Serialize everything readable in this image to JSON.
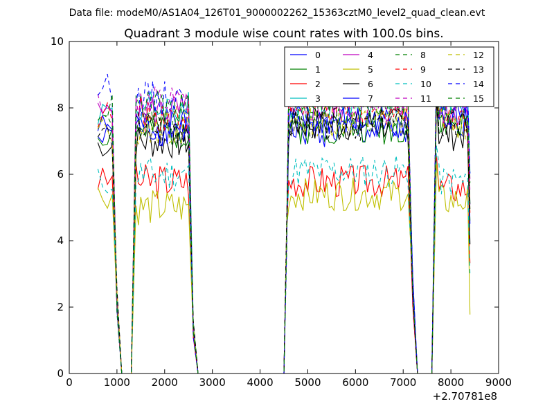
{
  "suptitle": "Data file: modeM0/AS1A04_126T01_9000002262_15363cztM0_level2_quad_clean.evt",
  "chart_data": {
    "type": "line",
    "title": "Quadrant 3 module wise count rates with 100.0s bins.",
    "xlabel": "",
    "ylabel": "",
    "xlim": [
      0,
      9000
    ],
    "ylim": [
      0,
      10
    ],
    "x_offset_label": "+2.70781e8",
    "x_ticks": [
      "0",
      "1000",
      "2000",
      "3000",
      "4000",
      "5000",
      "6000",
      "7000",
      "8000",
      "9000"
    ],
    "y_ticks": [
      "0",
      "2",
      "4",
      "6",
      "8",
      "10"
    ],
    "legend_position": "upper right",
    "grid": false,
    "series": [
      {
        "name": "0",
        "color": "#0000ff",
        "dash": "solid",
        "seed": 1,
        "levels": [
          7.1,
          7.4,
          7.3,
          7.6
        ]
      },
      {
        "name": "1",
        "color": "#008000",
        "dash": "solid",
        "seed": 2,
        "levels": [
          7.2,
          7.3,
          7.4,
          7.5
        ]
      },
      {
        "name": "2",
        "color": "#ff0000",
        "dash": "solid",
        "seed": 3,
        "levels": [
          5.8,
          5.8,
          5.8,
          5.6
        ]
      },
      {
        "name": "3",
        "color": "#00bfbf",
        "dash": "solid",
        "seed": 4,
        "levels": [
          7.9,
          8.0,
          8.2,
          8.2
        ]
      },
      {
        "name": "4",
        "color": "#bf00bf",
        "dash": "solid",
        "seed": 5,
        "levels": [
          7.8,
          7.9,
          8.0,
          7.9
        ]
      },
      {
        "name": "5",
        "color": "#bfbf00",
        "dash": "solid",
        "seed": 6,
        "levels": [
          5.4,
          5.0,
          5.4,
          5.2
        ]
      },
      {
        "name": "6",
        "color": "#000000",
        "dash": "solid",
        "seed": 7,
        "levels": [
          6.9,
          7.0,
          7.5,
          7.2
        ]
      },
      {
        "name": "7",
        "color": "#0000ff",
        "dash": "solid",
        "seed": 8,
        "levels": [
          7.4,
          7.4,
          7.6,
          7.7
        ]
      },
      {
        "name": "8",
        "color": "#008000",
        "dash": "dashed",
        "seed": 9,
        "levels": [
          7.6,
          7.5,
          7.8,
          7.6
        ]
      },
      {
        "name": "9",
        "color": "#ff0000",
        "dash": "dashed",
        "seed": 10,
        "levels": [
          7.8,
          7.8,
          8.0,
          7.8
        ]
      },
      {
        "name": "10",
        "color": "#00bfbf",
        "dash": "dashed",
        "seed": 11,
        "levels": [
          5.8,
          6.0,
          6.1,
          5.8
        ]
      },
      {
        "name": "11",
        "color": "#bf00bf",
        "dash": "dashed",
        "seed": 12,
        "levels": [
          8.2,
          8.1,
          8.3,
          8.2
        ]
      },
      {
        "name": "12",
        "color": "#bfbf00",
        "dash": "dashed",
        "seed": 13,
        "levels": [
          7.3,
          7.4,
          7.6,
          7.5
        ]
      },
      {
        "name": "13",
        "color": "#000000",
        "dash": "dashed",
        "seed": 14,
        "levels": [
          7.2,
          7.4,
          7.5,
          7.4
        ]
      },
      {
        "name": "14",
        "color": "#0000ff",
        "dash": "dashed",
        "seed": 15,
        "levels": [
          8.6,
          8.3,
          8.6,
          8.4
        ]
      },
      {
        "name": "15",
        "color": "#008000",
        "dash": "dashed",
        "seed": 16,
        "levels": [
          8.0,
          8.0,
          8.2,
          8.0
        ]
      }
    ]
  }
}
